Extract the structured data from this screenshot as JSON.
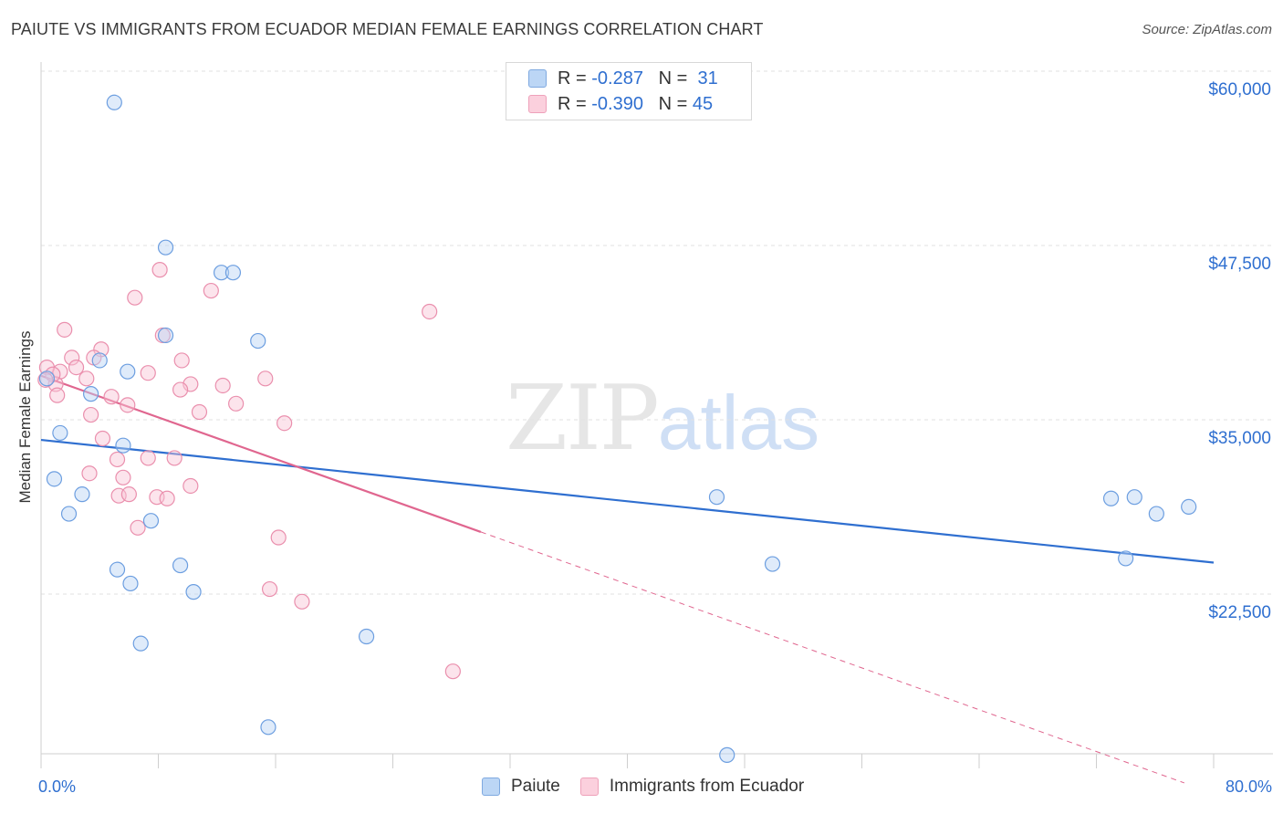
{
  "title": "PAIUTE VS IMMIGRANTS FROM ECUADOR MEDIAN FEMALE EARNINGS CORRELATION CHART",
  "source": "Source: ZipAtlas.com",
  "watermark": {
    "part1": "ZIP",
    "part2": "atlas"
  },
  "legend": {
    "paiute": {
      "r_label": "R =",
      "r_value": "-0.287",
      "n_label": "N =",
      "n_value": "31"
    },
    "ecuador": {
      "r_label": "R =",
      "r_value": "-0.390",
      "n_label": "N =",
      "n_value": "45"
    }
  },
  "bottom_legend": {
    "paiute": "Paiute",
    "ecuador": "Immigrants from Ecuador"
  },
  "chart_data": {
    "type": "scatter",
    "title": "PAIUTE VS IMMIGRANTS FROM ECUADOR MEDIAN FEMALE EARNINGS CORRELATION CHART",
    "xlabel": "",
    "ylabel": "Median Female Earnings",
    "x_tick_labels": [
      "0.0%",
      "80.0%"
    ],
    "y_tick_labels": [
      "$60,000",
      "$47,500",
      "$35,000",
      "$22,500"
    ],
    "y_ticks": [
      60000,
      47500,
      35000,
      22500
    ],
    "xlim": [
      0,
      80
    ],
    "ylim": [
      12000,
      61500
    ],
    "colors": {
      "paiute": "#a9c9f0",
      "paiute_line": "#2f6fd0",
      "ecuador": "#f6b8cc",
      "ecuador_line": "#e0668f",
      "tick_text": "#2f6fd0"
    },
    "series": [
      {
        "name": "Paiute",
        "points": [
          [
            5.0,
            59000
          ],
          [
            8.5,
            48600
          ],
          [
            12.3,
            46800
          ],
          [
            13.1,
            46800
          ],
          [
            8.5,
            42300
          ],
          [
            14.8,
            41900
          ],
          [
            4.0,
            40500
          ],
          [
            5.9,
            39700
          ],
          [
            3.4,
            38100
          ],
          [
            1.3,
            35300
          ],
          [
            5.6,
            34400
          ],
          [
            0.9,
            32000
          ],
          [
            2.8,
            30900
          ],
          [
            1.9,
            29500
          ],
          [
            7.5,
            29000
          ],
          [
            5.2,
            25500
          ],
          [
            6.1,
            24500
          ],
          [
            9.5,
            25800
          ],
          [
            10.4,
            23900
          ],
          [
            6.8,
            20200
          ],
          [
            22.2,
            20700
          ],
          [
            15.5,
            14200
          ],
          [
            46.1,
            30700
          ],
          [
            49.9,
            25900
          ],
          [
            74.0,
            26300
          ],
          [
            73.0,
            30600
          ],
          [
            74.6,
            30700
          ],
          [
            76.1,
            29500
          ],
          [
            78.3,
            30000
          ],
          [
            46.8,
            12200
          ],
          [
            0.4,
            39200
          ]
        ],
        "trend": {
          "x": [
            0,
            80
          ],
          "y": [
            34800,
            26000
          ]
        }
      },
      {
        "name": "Immigrants from Ecuador",
        "points": [
          [
            8.1,
            47000
          ],
          [
            6.4,
            45000
          ],
          [
            11.6,
            45500
          ],
          [
            26.5,
            44000
          ],
          [
            1.6,
            42700
          ],
          [
            8.3,
            42300
          ],
          [
            4.1,
            41300
          ],
          [
            2.1,
            40700
          ],
          [
            3.6,
            40700
          ],
          [
            9.6,
            40500
          ],
          [
            2.4,
            40000
          ],
          [
            1.3,
            39700
          ],
          [
            7.3,
            39600
          ],
          [
            3.1,
            39200
          ],
          [
            15.3,
            39200
          ],
          [
            10.2,
            38800
          ],
          [
            12.4,
            38700
          ],
          [
            9.5,
            38400
          ],
          [
            1.0,
            38800
          ],
          [
            1.1,
            38000
          ],
          [
            4.8,
            37900
          ],
          [
            5.9,
            37300
          ],
          [
            13.3,
            37400
          ],
          [
            3.4,
            36600
          ],
          [
            10.8,
            36800
          ],
          [
            16.6,
            36000
          ],
          [
            4.2,
            34900
          ],
          [
            7.3,
            33500
          ],
          [
            9.1,
            33500
          ],
          [
            5.2,
            33400
          ],
          [
            3.3,
            32400
          ],
          [
            5.6,
            32100
          ],
          [
            10.2,
            31500
          ],
          [
            5.3,
            30800
          ],
          [
            6.0,
            30900
          ],
          [
            7.9,
            30700
          ],
          [
            8.6,
            30600
          ],
          [
            6.6,
            28500
          ],
          [
            16.2,
            27800
          ],
          [
            15.6,
            24100
          ],
          [
            17.8,
            23200
          ],
          [
            28.1,
            18200
          ],
          [
            0.4,
            40000
          ],
          [
            0.8,
            39500
          ],
          [
            0.3,
            39100
          ]
        ],
        "trend": {
          "x": [
            0,
            30
          ],
          "y": [
            39400,
            28200
          ]
        },
        "trend_extension": {
          "x": [
            30,
            78
          ],
          "y": [
            28200,
            10200
          ]
        }
      }
    ]
  }
}
